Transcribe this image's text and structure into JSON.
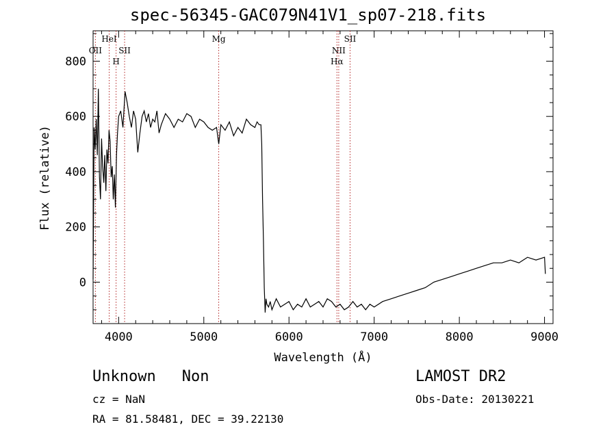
{
  "title": "spec-56345-GAC079N41V1_sp07-218.fits",
  "footer": {
    "class_label": "Unknown",
    "subclass_label": "Non",
    "cz": "cz = NaN",
    "coords": "RA =  81.58481, DEC =  39.22130",
    "survey": "LAMOST DR2",
    "obs_date": "Obs-Date: 20130221"
  },
  "chart_data": {
    "type": "line",
    "xlabel": "Wavelength (Å)",
    "ylabel": "Flux (relative)",
    "xlim": [
      3700,
      9100
    ],
    "ylim": [
      -150,
      910
    ],
    "xticks": [
      4000,
      5000,
      6000,
      7000,
      8000,
      9000
    ],
    "xtick_labels": [
      "4000",
      "5000",
      "6000",
      "7000",
      "8000",
      "9000"
    ],
    "yticks": [
      0,
      200,
      400,
      600,
      800
    ],
    "ytick_labels": [
      "0",
      "200",
      "400",
      "600",
      "800"
    ],
    "grid": false,
    "spectral_lines": [
      {
        "label": "OII",
        "x": 3727,
        "row": 2
      },
      {
        "label": "HeI",
        "x": 3889,
        "row": 1
      },
      {
        "label": "H",
        "x": 3970,
        "row": 3
      },
      {
        "label": "SII",
        "x": 4070,
        "row": 2
      },
      {
        "label": "Mg",
        "x": 5175,
        "row": 1
      },
      {
        "label": "NII",
        "x": 6584,
        "row": 2
      },
      {
        "label": "Hα",
        "x": 6563,
        "row": 3
      },
      {
        "label": "SII",
        "x": 6717,
        "row": 1
      }
    ],
    "series": [
      {
        "x": [
          3700,
          3712,
          3725,
          3737,
          3750,
          3762,
          3775,
          3787,
          3800,
          3812,
          3825,
          3837,
          3850,
          3862,
          3875,
          3887,
          3900,
          3912,
          3925,
          3937,
          3950,
          3962,
          3975,
          3987,
          4000,
          4025,
          4050,
          4075,
          4100,
          4125,
          4150,
          4175,
          4200,
          4225,
          4250,
          4275,
          4300,
          4325,
          4350,
          4375,
          4400,
          4425,
          4450,
          4475,
          4500,
          4550,
          4600,
          4650,
          4700,
          4750,
          4800,
          4850,
          4900,
          4950,
          5000,
          5050,
          5100,
          5150,
          5175,
          5200,
          5250,
          5300,
          5350,
          5400,
          5450,
          5500,
          5550,
          5600,
          5625,
          5650,
          5670,
          5680,
          5690,
          5700,
          5710,
          5720,
          5730,
          5740,
          5760,
          5780,
          5800,
          5850,
          5900,
          5950,
          6000,
          6050,
          6100,
          6150,
          6200,
          6250,
          6300,
          6350,
          6400,
          6450,
          6500,
          6550,
          6600,
          6650,
          6700,
          6750,
          6800,
          6850,
          6900,
          6950,
          7000,
          7100,
          7200,
          7300,
          7400,
          7500,
          7600,
          7700,
          7800,
          7900,
          8000,
          8100,
          8200,
          8300,
          8400,
          8500,
          8600,
          8700,
          8800,
          8900,
          9000,
          9010
        ],
        "y": [
          10,
          560,
          480,
          590,
          460,
          700,
          380,
          300,
          520,
          420,
          360,
          460,
          330,
          480,
          430,
          550,
          510,
          380,
          420,
          300,
          390,
          270,
          460,
          540,
          600,
          620,
          560,
          690,
          650,
          600,
          560,
          620,
          590,
          470,
          540,
          600,
          620,
          580,
          610,
          560,
          590,
          580,
          620,
          540,
          570,
          610,
          590,
          560,
          590,
          580,
          610,
          600,
          560,
          590,
          580,
          560,
          550,
          560,
          500,
          570,
          550,
          580,
          530,
          560,
          540,
          590,
          570,
          560,
          580,
          570,
          570,
          500,
          300,
          150,
          -20,
          -110,
          -60,
          -80,
          -90,
          -70,
          -100,
          -60,
          -90,
          -80,
          -70,
          -100,
          -80,
          -90,
          -60,
          -90,
          -80,
          -70,
          -90,
          -60,
          -70,
          -90,
          -80,
          -100,
          -90,
          -70,
          -90,
          -80,
          -100,
          -80,
          -90,
          -70,
          -60,
          -50,
          -40,
          -30,
          -20,
          0,
          10,
          20,
          30,
          40,
          50,
          60,
          70,
          70,
          80,
          70,
          90,
          80,
          90,
          30
        ]
      }
    ]
  }
}
